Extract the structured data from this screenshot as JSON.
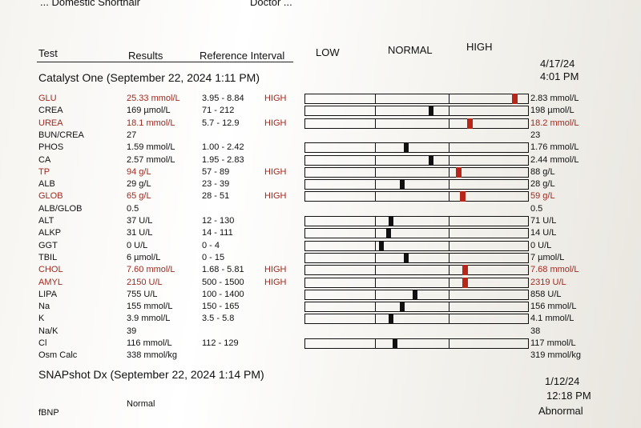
{
  "clinic_header": "... Domestic Shorthair",
  "doctor_header": "Doctor ...",
  "headers": {
    "test": "Test",
    "results": "Results",
    "reference": "Reference Interval",
    "low": "LOW",
    "normal": "NORMAL",
    "high": "HIGH"
  },
  "section1": {
    "title": "Catalyst One (September 22, 2024 1:11 PM)",
    "prev_date": "4/17/24",
    "prev_time": "4:01 PM"
  },
  "rows": [
    {
      "test": "GLU",
      "result": "25.33 mmol/L",
      "ref": "3.95 - 8.84",
      "flag": "HIGH",
      "prev": "2.83 mmol/L",
      "prev_high": false,
      "abnormal": true,
      "marker": 0.92
    },
    {
      "test": "CREA",
      "result": "169 µmol/L",
      "ref": "71 - 212",
      "flag": "",
      "prev": "198 µmol/L",
      "prev_high": false,
      "abnormal": false,
      "marker": 0.55
    },
    {
      "test": "UREA",
      "result": "18.1 mmol/L",
      "ref": "5.7 - 12.9",
      "flag": "HIGH",
      "prev": "18.2 mmol/L",
      "prev_high": true,
      "abnormal": true,
      "marker": 0.72
    },
    {
      "test": "BUN/CREA",
      "result": "27",
      "ref": "",
      "flag": "",
      "prev": "23",
      "prev_high": false,
      "abnormal": false,
      "marker": null
    },
    {
      "test": "PHOS",
      "result": "1.59 mmol/L",
      "ref": "1.00 - 2.42",
      "flag": "",
      "prev": "1.76 mmol/L",
      "prev_high": false,
      "abnormal": false,
      "marker": 0.44
    },
    {
      "test": "CA",
      "result": "2.57 mmol/L",
      "ref": "1.95 - 2.83",
      "flag": "",
      "prev": "2.44 mmol/L",
      "prev_high": false,
      "abnormal": false,
      "marker": 0.55
    },
    {
      "test": "TP",
      "result": "94 g/L",
      "ref": "57 - 89",
      "flag": "HIGH",
      "prev": "88 g/L",
      "prev_high": false,
      "abnormal": true,
      "marker": 0.67
    },
    {
      "test": "ALB",
      "result": "29 g/L",
      "ref": "23 - 39",
      "flag": "",
      "prev": "28 g/L",
      "prev_high": false,
      "abnormal": false,
      "marker": 0.42
    },
    {
      "test": "GLOB",
      "result": "65 g/L",
      "ref": "28 - 51",
      "flag": "HIGH",
      "prev": "59 g/L",
      "prev_high": true,
      "abnormal": true,
      "marker": 0.69
    },
    {
      "test": "ALB/GLOB",
      "result": "0.5",
      "ref": "",
      "flag": "",
      "prev": "0.5",
      "prev_high": false,
      "abnormal": false,
      "marker": null
    },
    {
      "test": "ALT",
      "result": "37 U/L",
      "ref": "12 - 130",
      "flag": "",
      "prev": "71 U/L",
      "prev_high": false,
      "abnormal": false,
      "marker": 0.37
    },
    {
      "test": "ALKP",
      "result": "31 U/L",
      "ref": "14 - 111",
      "flag": "",
      "prev": "14 U/L",
      "prev_high": false,
      "abnormal": false,
      "marker": 0.36
    },
    {
      "test": "GGT",
      "result": "0 U/L",
      "ref": "0 - 4",
      "flag": "",
      "prev": "0 U/L",
      "prev_high": false,
      "abnormal": false,
      "marker": 0.33
    },
    {
      "test": "TBIL",
      "result": "6 µmol/L",
      "ref": "0 - 15",
      "flag": "",
      "prev": "7 µmol/L",
      "prev_high": false,
      "abnormal": false,
      "marker": 0.44
    },
    {
      "test": "CHOL",
      "result": "7.60 mmol/L",
      "ref": "1.68 - 5.81",
      "flag": "HIGH",
      "prev": "7.68 mmol/L",
      "prev_high": true,
      "abnormal": true,
      "marker": 0.7
    },
    {
      "test": "AMYL",
      "result": "2150 U/L",
      "ref": "500 - 1500",
      "flag": "HIGH",
      "prev": "2319 U/L",
      "prev_high": true,
      "abnormal": true,
      "marker": 0.7
    },
    {
      "test": "LIPA",
      "result": "755 U/L",
      "ref": "100 - 1400",
      "flag": "",
      "prev": "858 U/L",
      "prev_high": false,
      "abnormal": false,
      "marker": 0.48
    },
    {
      "test": "Na",
      "result": "155 mmol/L",
      "ref": "150 - 165",
      "flag": "",
      "prev": "156 mmol/L",
      "prev_high": false,
      "abnormal": false,
      "marker": 0.42
    },
    {
      "test": "K",
      "result": "3.9 mmol/L",
      "ref": "3.5 - 5.8",
      "flag": "",
      "prev": "4.1 mmol/L",
      "prev_high": false,
      "abnormal": false,
      "marker": 0.37
    },
    {
      "test": "Na/K",
      "result": "39",
      "ref": "",
      "flag": "",
      "prev": "38",
      "prev_high": false,
      "abnormal": false,
      "marker": null
    },
    {
      "test": "Cl",
      "result": "116 mmol/L",
      "ref": "112 - 129",
      "flag": "",
      "prev": "117 mmol/L",
      "prev_high": false,
      "abnormal": false,
      "marker": 0.39
    },
    {
      "test": "Osm Calc",
      "result": "338 mmol/kg",
      "ref": "",
      "flag": "",
      "prev": "319 mmol/kg",
      "prev_high": false,
      "abnormal": false,
      "marker": null
    }
  ],
  "section2": {
    "title": "SNAPshot Dx (September 22, 2024 1:14 PM)",
    "prev_date": "1/12/24",
    "prev_time": "12:18 PM",
    "test": "fBNP",
    "result": "Normal",
    "prev": "Abnormal"
  },
  "colors": {
    "abnormal_text": "#a02a20",
    "marker_high": "#b8261a",
    "marker_normal": "#111111"
  }
}
